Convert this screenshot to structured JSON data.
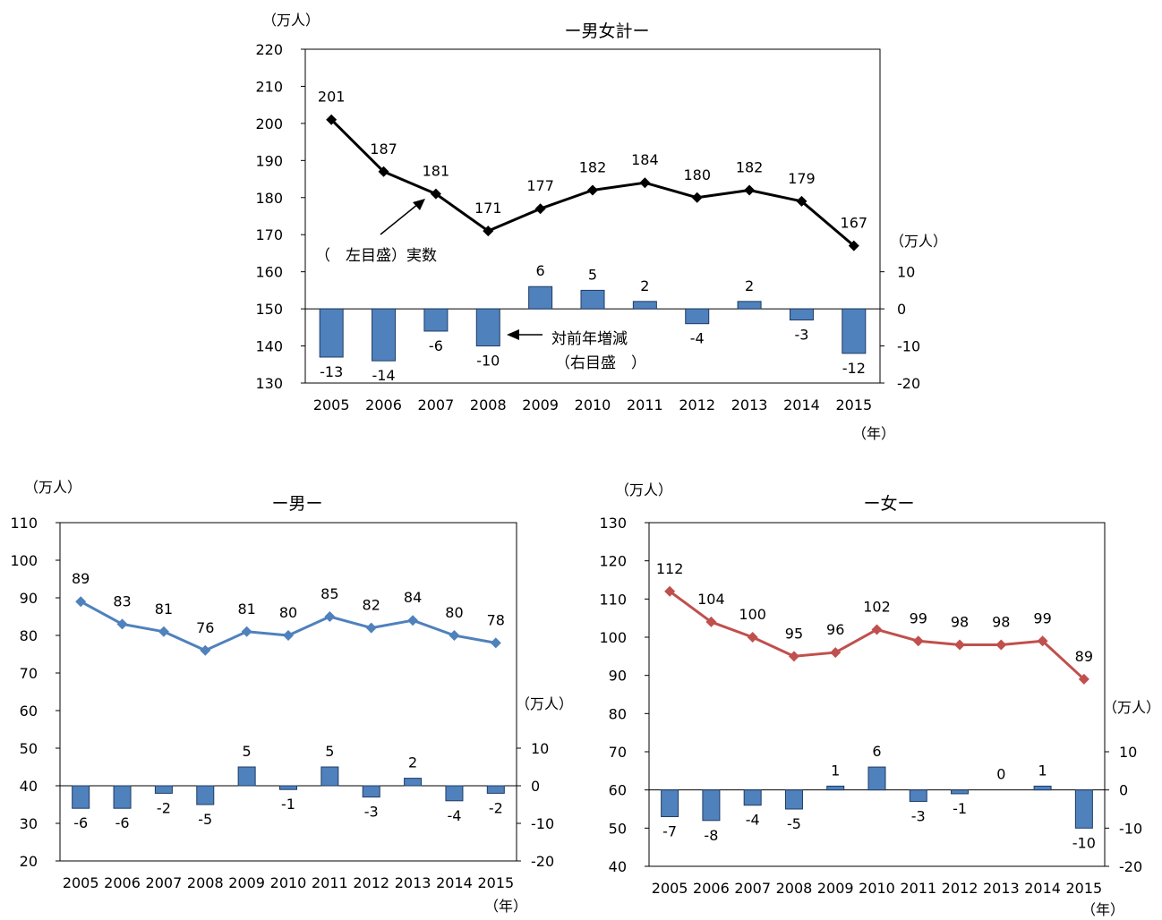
{
  "chart_data": [
    {
      "type": "line+bar",
      "title": "ー男女計ー",
      "x": [
        "2005",
        "2006",
        "2007",
        "2008",
        "2009",
        "2010",
        "2011",
        "2012",
        "2013",
        "2014",
        "2015"
      ],
      "y_left_label": "（万人）",
      "y_right_label": "（万人）",
      "x_unit": "（年）",
      "ylim_left": [
        130,
        220
      ],
      "yticks_left": [
        130,
        140,
        150,
        160,
        170,
        180,
        190,
        200,
        210,
        220
      ],
      "ylim_right": [
        -20,
        70
      ],
      "yticks_right": [
        -20,
        -10,
        0,
        10
      ],
      "series": [
        {
          "kind": "line",
          "axis": "left",
          "color": "#000000",
          "values": [
            201,
            187,
            181,
            171,
            177,
            182,
            184,
            180,
            182,
            179,
            167
          ],
          "labels": [
            "201",
            "187",
            "181",
            "171",
            "177",
            "182",
            "184",
            "180",
            "182",
            "179",
            "167"
          ]
        },
        {
          "kind": "bar",
          "axis": "right",
          "color": "#4f81bd",
          "values": [
            -13,
            -14,
            -6,
            -10,
            6,
            5,
            2,
            -4,
            2,
            -3,
            -12
          ],
          "labels": [
            "-13",
            "-14",
            "-6",
            "-10",
            "6",
            "5",
            "2",
            "-4",
            "2",
            "-3",
            "-12"
          ]
        }
      ],
      "annotations": {
        "line_note": "（　左目盛）実数",
        "bar_note_1": "対前年増減",
        "bar_note_2": "（右目盛　）"
      }
    },
    {
      "type": "line+bar",
      "title": "ー男ー",
      "x": [
        "2005",
        "2006",
        "2007",
        "2008",
        "2009",
        "2010",
        "2011",
        "2012",
        "2013",
        "2014",
        "2015"
      ],
      "y_left_label": "（万人）",
      "y_right_label": "（万人）",
      "x_unit": "（年）",
      "ylim_left": [
        20,
        110
      ],
      "yticks_left": [
        20,
        30,
        40,
        50,
        60,
        70,
        80,
        90,
        100,
        110
      ],
      "ylim_right": [
        -20,
        70
      ],
      "yticks_right": [
        -20,
        -10,
        0,
        10
      ],
      "series": [
        {
          "kind": "line",
          "axis": "left",
          "color": "#4f81bd",
          "values": [
            89,
            83,
            81,
            76,
            81,
            80,
            85,
            82,
            84,
            80,
            78
          ],
          "labels": [
            "89",
            "83",
            "81",
            "76",
            "81",
            "80",
            "85",
            "82",
            "84",
            "80",
            "78"
          ]
        },
        {
          "kind": "bar",
          "axis": "right",
          "color": "#4f81bd",
          "values": [
            -6,
            -6,
            -2,
            -5,
            5,
            -1,
            5,
            -3,
            2,
            -4,
            -2
          ],
          "labels": [
            "-6",
            "-6",
            "-2",
            "-5",
            "5",
            "-1",
            "5",
            "-3",
            "2",
            "-4",
            "-2"
          ]
        }
      ]
    },
    {
      "type": "line+bar",
      "title": "ー女ー",
      "x": [
        "2005",
        "2006",
        "2007",
        "2008",
        "2009",
        "2010",
        "2011",
        "2012",
        "2013",
        "2014",
        "2015"
      ],
      "y_left_label": "（万人）",
      "y_right_label": "（万人）",
      "x_unit": "（年）",
      "ylim_left": [
        40,
        130
      ],
      "yticks_left": [
        40,
        50,
        60,
        70,
        80,
        90,
        100,
        110,
        120,
        130
      ],
      "ylim_right": [
        -20,
        70
      ],
      "yticks_right": [
        -20,
        -10,
        0,
        10
      ],
      "series": [
        {
          "kind": "line",
          "axis": "left",
          "color": "#c0504d",
          "values": [
            112,
            104,
            100,
            95,
            96,
            102,
            99,
            98,
            98,
            99,
            89
          ],
          "labels": [
            "112",
            "104",
            "100",
            "95",
            "96",
            "102",
            "99",
            "98",
            "98",
            "99",
            "89"
          ]
        },
        {
          "kind": "bar",
          "axis": "right",
          "color": "#4f81bd",
          "values": [
            -7,
            -8,
            -4,
            -5,
            1,
            6,
            -3,
            -1,
            0,
            1,
            -10
          ],
          "labels": [
            "-7",
            "-8",
            "-4",
            "-5",
            "1",
            "6",
            "-3",
            "-1",
            "0",
            "1",
            "-10"
          ]
        }
      ]
    }
  ]
}
